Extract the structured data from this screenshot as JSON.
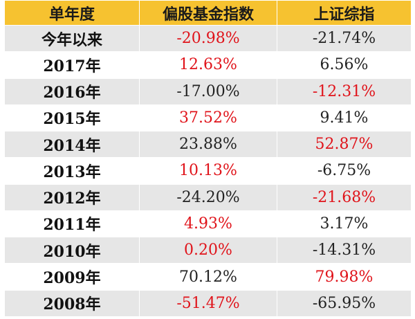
{
  "headers": [
    "单年度",
    "偏股基金指数",
    "上证综指"
  ],
  "rows": [
    {
      "period": "今年以来",
      "fund": "-20.98%",
      "fund_red": true,
      "sh": "-21.74%",
      "sh_red": false
    },
    {
      "period": "2017年",
      "fund": "12.63%",
      "fund_red": true,
      "sh": "6.56%",
      "sh_red": false
    },
    {
      "period": "2016年",
      "fund": "-17.00%",
      "fund_red": false,
      "sh": "-12.31%",
      "sh_red": true
    },
    {
      "period": "2015年",
      "fund": "37.52%",
      "fund_red": true,
      "sh": "9.41%",
      "sh_red": false
    },
    {
      "period": "2014年",
      "fund": "23.88%",
      "fund_red": false,
      "sh": "52.87%",
      "sh_red": true
    },
    {
      "period": "2013年",
      "fund": "10.13%",
      "fund_red": true,
      "sh": "-6.75%",
      "sh_red": false
    },
    {
      "period": "2012年",
      "fund": "-24.20%",
      "fund_red": false,
      "sh": "-21.68%",
      "sh_red": true
    },
    {
      "period": "2011年",
      "fund": "4.93%",
      "fund_red": true,
      "sh": "3.17%",
      "sh_red": false
    },
    {
      "period": "2010年",
      "fund": "0.20%",
      "fund_red": true,
      "sh": "-14.31%",
      "sh_red": false
    },
    {
      "period": "2009年",
      "fund": "70.12%",
      "fund_red": false,
      "sh": "79.98%",
      "sh_red": true
    },
    {
      "period": "2008年",
      "fund": "-51.47%",
      "fund_red": true,
      "sh": "-65.95%",
      "sh_red": false
    }
  ],
  "colors": {
    "header_bg": "#f6c230",
    "highlight": "#e0131a",
    "stripe": "#e6e6e6"
  }
}
